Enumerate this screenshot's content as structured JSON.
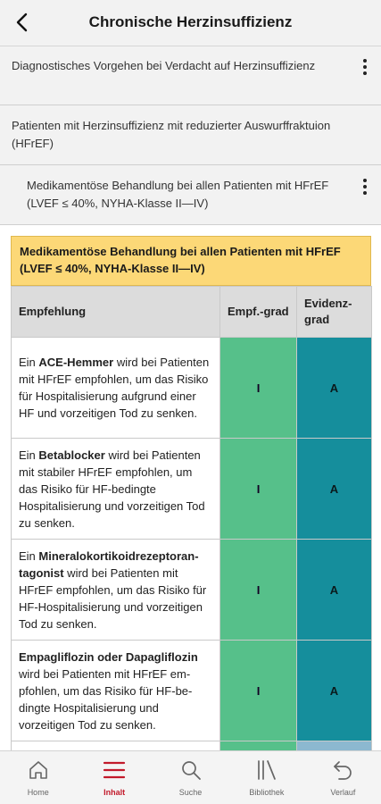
{
  "header": {
    "title": "Chronische Herzinsuffizienz"
  },
  "breadcrumbs": [
    {
      "text": "Diagnostisches Vorgehen bei Verdacht auf Herzinsuffizienz"
    },
    {
      "text": "Patienten mit Herzinsuffizienz mit reduzierter Auswurffraktuion (HFrEF)"
    },
    {
      "text": "Medikamentöse Behandlung bei allen Patienten mit HFrEF (LVEF ≤ 40%, NYHA-Klasse II—IV)"
    }
  ],
  "content": {
    "title": "Medikamentöse Behandlung bei allen Patienten mit HFrEF (LVEF ≤ 40%, NYHA-Klasse II—IV)",
    "table": {
      "headers": [
        "Empfehlung",
        "Empf.-grad",
        "Evidenz-grad"
      ],
      "rows": [
        {
          "pre": "Ein ",
          "bold": "ACE-Hemmer",
          "post": " wird bei Patien­ten mit HFrEF empfohlen, um das Risiko für Hospitalisierung aufgrund einer HF und vorzeiti­gen Tod zu senken.",
          "grade": "I",
          "evidence": "A"
        },
        {
          "pre": "Ein ",
          "bold": "Betablocker",
          "post": " wird bei Patien­ten mit stabiler HFrEF empfoh­len, um das Risiko für HF-beding­te Hospitalisierung und vorzeiti­gen Tod zu senken.",
          "grade": "I",
          "evidence": "A"
        },
        {
          "pre": "Ein ",
          "bold": "Mineralokortikoidrezeptoran­tagonist",
          "post": " wird bei Patienten mit HFrEF empfohlen, um das Risiko für HF-Hospitalisierung und vor­zeitigen Tod zu senken.",
          "grade": "I",
          "evidence": "A"
        },
        {
          "pre": "",
          "bold": "Empagliflozin oder Dapagliflozin",
          "post": " wird bei Patienten mit HFrEF em­pfohlen, um das Risiko für HF-be­dingte Hospitalisierung und vorzeitigen Tod zu senken.",
          "grade": "I",
          "evidence": "A"
        }
      ]
    }
  },
  "nav": [
    {
      "label": "Home",
      "icon": "home-icon"
    },
    {
      "label": "Inhalt",
      "icon": "menu-icon",
      "active": true
    },
    {
      "label": "Suche",
      "icon": "search-icon"
    },
    {
      "label": "Bibliothek",
      "icon": "library-icon"
    },
    {
      "label": "Verlauf",
      "icon": "history-icon"
    }
  ],
  "colors": {
    "accent": "#c21a2b",
    "title_box": "#fcd877",
    "grade": "#56c08a",
    "evidence": "#158e9c"
  }
}
